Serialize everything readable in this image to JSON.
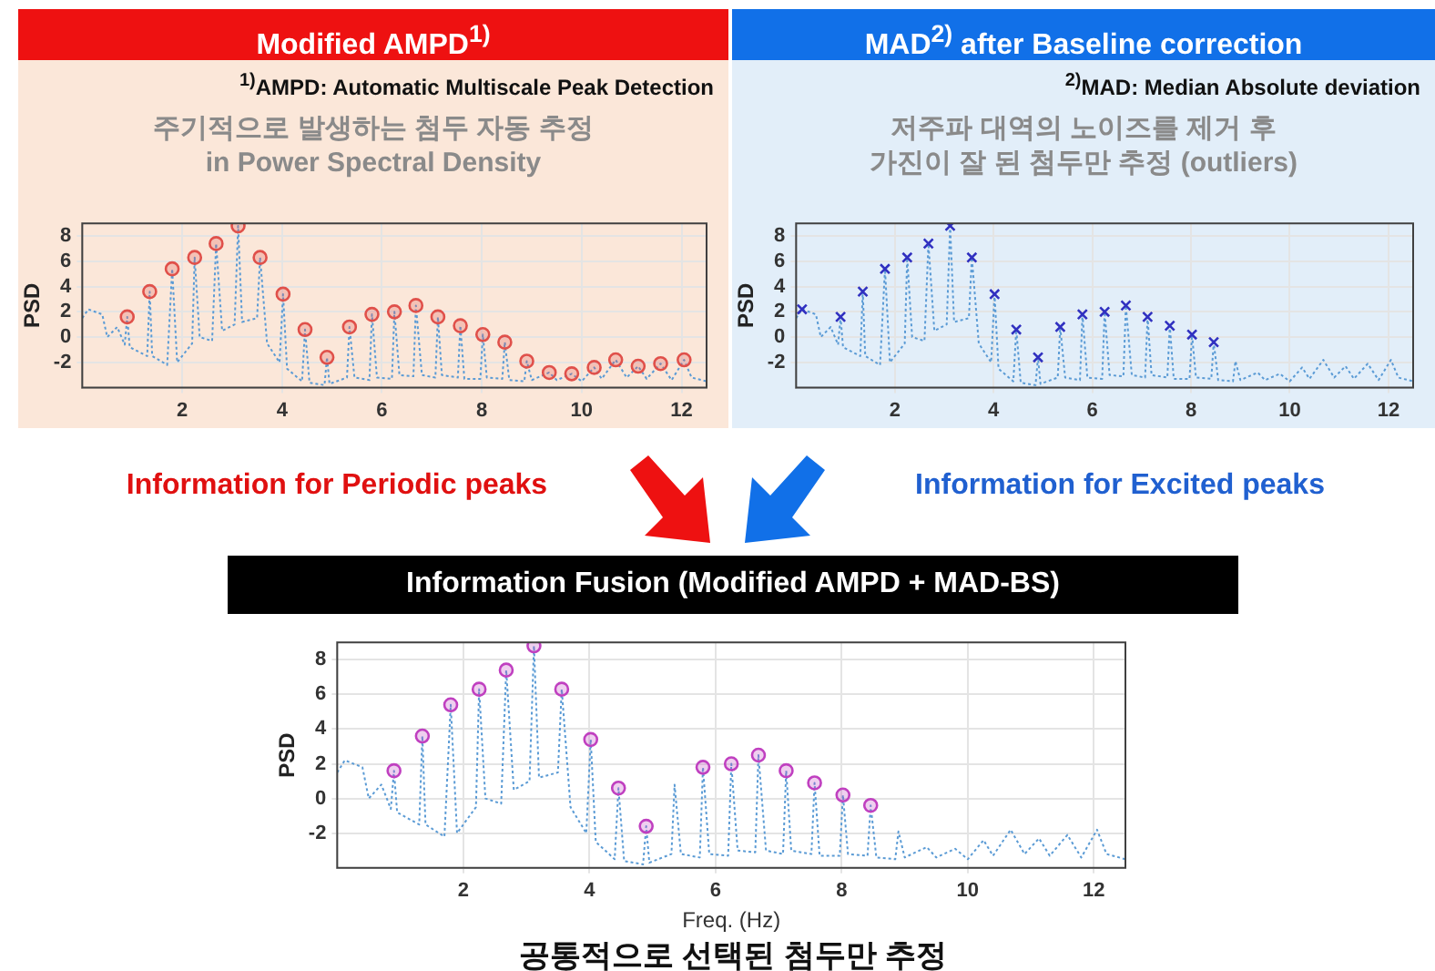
{
  "chart_data": [
    {
      "type": "line",
      "title": "Modified AMPD$^{1)}$",
      "annotations": [
        "$^{1)}$AMPD: Automatic Multiscale Peak Detection",
        "주기적으로 발생하는 첨두 자동 추정",
        "in Power Spectral Density"
      ],
      "ylabel": "PSD",
      "xlim": [
        0,
        12.5
      ],
      "xticks": [
        2,
        4,
        6,
        8,
        10,
        12
      ],
      "ylim": [
        -4,
        9
      ],
      "yticks": [
        -2,
        0,
        2,
        4,
        6,
        8
      ],
      "grid": true,
      "series": [
        {
          "type": "line",
          "color": "#5b9bd5",
          "line_style": "dotted",
          "marker": "none",
          "x": [
            0,
            0.12,
            0.4,
            0.5,
            0.7,
            0.85,
            0.9,
            0.95,
            1.3,
            1.35,
            1.4,
            1.7,
            1.8,
            1.9,
            2.2,
            2.25,
            2.35,
            2.6,
            2.68,
            2.8,
            3.05,
            3.12,
            3.2,
            3.5,
            3.56,
            3.7,
            3.95,
            4.02,
            4.1,
            4.4,
            4.46,
            4.55,
            4.85,
            4.9,
            4.95,
            5.3,
            5.35,
            5.45,
            5.75,
            5.8,
            5.9,
            6.2,
            6.25,
            6.35,
            6.63,
            6.68,
            6.8,
            7.07,
            7.12,
            7.2,
            7.52,
            7.57,
            7.65,
            7.97,
            8.02,
            8.1,
            8.41,
            8.46,
            8.55,
            8.85,
            8.9,
            9.0,
            9.35,
            9.5,
            9.8,
            10.0,
            10.25,
            10.4,
            10.68,
            10.9,
            11.13,
            11.3,
            11.58,
            11.8,
            12.05,
            12.2,
            12.5
          ],
          "values": [
            1.5,
            2.2,
            1.8,
            0,
            0.8,
            -0.6,
            1.6,
            -0.8,
            -1.5,
            3.6,
            -1.5,
            -2.2,
            5.4,
            -2,
            -0.5,
            6.3,
            0,
            -0.3,
            7.4,
            0.5,
            1,
            8.8,
            1.2,
            1.5,
            6.3,
            -0.5,
            -2,
            3.4,
            -2.5,
            -3.5,
            0.6,
            -3.6,
            -3.8,
            -1.6,
            -3.7,
            -3.2,
            0.8,
            -3.2,
            -3.4,
            1.8,
            -3.2,
            -3.3,
            2,
            -3,
            -3.1,
            2.5,
            -3,
            -3.2,
            1.6,
            -3,
            -3.2,
            0.9,
            -3.3,
            -3.3,
            0.2,
            -3.2,
            -3.3,
            -0.4,
            -3.4,
            -3.5,
            -1.9,
            -3.4,
            -2.8,
            -3.4,
            -2.9,
            -3.5,
            -2.4,
            -3.3,
            -1.8,
            -3.2,
            -2.3,
            -3.3,
            -2.1,
            -3.4,
            -1.8,
            -3.2,
            -3.5
          ]
        },
        {
          "type": "scatter",
          "color": "#e0504a",
          "marker": "circle",
          "x": [
            0.9,
            1.35,
            1.8,
            2.25,
            2.68,
            3.12,
            3.56,
            4.02,
            4.46,
            4.9,
            5.35,
            5.8,
            6.25,
            6.68,
            7.12,
            7.57,
            8.02,
            8.46,
            8.9,
            9.35,
            9.8,
            10.25,
            10.68,
            11.13,
            11.58,
            12.05
          ],
          "values": [
            1.6,
            3.6,
            5.4,
            6.3,
            7.4,
            8.8,
            6.3,
            3.4,
            0.6,
            -1.6,
            0.8,
            1.8,
            2,
            2.5,
            1.6,
            0.9,
            0.2,
            -0.4,
            -1.9,
            -2.8,
            -2.9,
            -2.4,
            -1.8,
            -2.3,
            -2.1,
            -1.8
          ]
        }
      ]
    },
    {
      "type": "line",
      "title": "MAD$^{2)}$ after Baseline correction",
      "annotations": [
        "$^{2)}$MAD: Median Absolute deviation",
        "저주파 대역의 노이즈를 제거 후",
        "가진이 잘 된 첨두만 추정 (outliers)"
      ],
      "ylabel": "PSD",
      "xlim": [
        0,
        12.5
      ],
      "xticks": [
        2,
        4,
        6,
        8,
        10,
        12
      ],
      "ylim": [
        -4,
        9
      ],
      "yticks": [
        -2,
        0,
        2,
        4,
        6,
        8
      ],
      "grid": true,
      "series": [
        {
          "type": "line",
          "color": "#5b9bd5",
          "line_style": "dotted",
          "marker": "none",
          "x": [
            0,
            0.12,
            0.4,
            0.5,
            0.7,
            0.85,
            0.9,
            0.95,
            1.3,
            1.35,
            1.4,
            1.7,
            1.8,
            1.9,
            2.2,
            2.25,
            2.35,
            2.6,
            2.68,
            2.8,
            3.05,
            3.12,
            3.2,
            3.5,
            3.56,
            3.7,
            3.95,
            4.02,
            4.1,
            4.4,
            4.46,
            4.55,
            4.85,
            4.9,
            4.95,
            5.3,
            5.35,
            5.45,
            5.75,
            5.8,
            5.9,
            6.2,
            6.25,
            6.35,
            6.63,
            6.68,
            6.8,
            7.07,
            7.12,
            7.2,
            7.52,
            7.57,
            7.65,
            7.97,
            8.02,
            8.1,
            8.41,
            8.46,
            8.55,
            8.85,
            8.9,
            9.0,
            9.35,
            9.5,
            9.8,
            10.0,
            10.25,
            10.4,
            10.68,
            10.9,
            11.13,
            11.3,
            11.58,
            11.8,
            12.05,
            12.2,
            12.5
          ],
          "values": [
            1.5,
            2.2,
            1.8,
            0,
            0.8,
            -0.6,
            1.6,
            -0.8,
            -1.5,
            3.6,
            -1.5,
            -2.2,
            5.4,
            -2,
            -0.5,
            6.3,
            0,
            -0.3,
            7.4,
            0.5,
            1,
            8.8,
            1.2,
            1.5,
            6.3,
            -0.5,
            -2,
            3.4,
            -2.5,
            -3.5,
            0.6,
            -3.6,
            -3.8,
            -1.6,
            -3.7,
            -3.2,
            0.8,
            -3.2,
            -3.4,
            1.8,
            -3.2,
            -3.3,
            2,
            -3,
            -3.1,
            2.5,
            -3,
            -3.2,
            1.6,
            -3,
            -3.2,
            0.9,
            -3.3,
            -3.3,
            0.2,
            -3.2,
            -3.3,
            -0.4,
            -3.4,
            -3.5,
            -1.9,
            -3.4,
            -2.8,
            -3.4,
            -2.9,
            -3.5,
            -2.4,
            -3.3,
            -1.8,
            -3.2,
            -2.3,
            -3.3,
            -2.1,
            -3.4,
            -1.8,
            -3.2,
            -3.5
          ]
        },
        {
          "type": "scatter",
          "color": "#3030c0",
          "marker": "cross",
          "x": [
            0.12,
            0.9,
            1.35,
            1.8,
            2.25,
            2.68,
            3.12,
            3.56,
            4.02,
            4.46,
            4.9,
            5.35,
            5.8,
            6.25,
            6.68,
            7.12,
            7.57,
            8.02,
            8.46
          ],
          "values": [
            2.2,
            1.6,
            3.6,
            5.4,
            6.3,
            7.4,
            8.8,
            6.3,
            3.4,
            0.6,
            -1.6,
            0.8,
            1.8,
            2,
            2.5,
            1.6,
            0.9,
            0.2,
            -0.4
          ]
        }
      ]
    },
    {
      "type": "line",
      "title": "Information Fusion (Modified AMPD + MAD-BS)",
      "annotations": [
        "Information for Periodic peaks",
        "Information for Excited peaks",
        "공통적으로 선택된 첨두만 추정"
      ],
      "xlabel": "Freq. (Hz)",
      "ylabel": "PSD",
      "xlim": [
        0,
        12.5
      ],
      "xticks": [
        2,
        4,
        6,
        8,
        10,
        12
      ],
      "ylim": [
        -4,
        9
      ],
      "yticks": [
        -2,
        0,
        2,
        4,
        6,
        8
      ],
      "grid": true,
      "series": [
        {
          "type": "line",
          "color": "#5b9bd5",
          "line_style": "dotted",
          "marker": "none",
          "x": [
            0,
            0.12,
            0.4,
            0.5,
            0.7,
            0.85,
            0.9,
            0.95,
            1.3,
            1.35,
            1.4,
            1.7,
            1.8,
            1.9,
            2.2,
            2.25,
            2.35,
            2.6,
            2.68,
            2.8,
            3.05,
            3.12,
            3.2,
            3.5,
            3.56,
            3.7,
            3.95,
            4.02,
            4.1,
            4.4,
            4.46,
            4.55,
            4.85,
            4.9,
            4.95,
            5.3,
            5.35,
            5.45,
            5.75,
            5.8,
            5.9,
            6.2,
            6.25,
            6.35,
            6.63,
            6.68,
            6.8,
            7.07,
            7.12,
            7.2,
            7.52,
            7.57,
            7.65,
            7.97,
            8.02,
            8.1,
            8.41,
            8.46,
            8.55,
            8.85,
            8.9,
            9.0,
            9.35,
            9.5,
            9.8,
            10.0,
            10.25,
            10.4,
            10.68,
            10.9,
            11.13,
            11.3,
            11.58,
            11.8,
            12.05,
            12.2,
            12.5
          ],
          "values": [
            1.5,
            2.2,
            1.8,
            0,
            0.8,
            -0.6,
            1.6,
            -0.8,
            -1.5,
            3.6,
            -1.5,
            -2.2,
            5.4,
            -2,
            -0.5,
            6.3,
            0,
            -0.3,
            7.4,
            0.5,
            1,
            8.8,
            1.2,
            1.5,
            6.3,
            -0.5,
            -2,
            3.4,
            -2.5,
            -3.5,
            0.6,
            -3.6,
            -3.8,
            -1.6,
            -3.7,
            -3.2,
            0.8,
            -3.2,
            -3.4,
            1.8,
            -3.2,
            -3.3,
            2,
            -3,
            -3.1,
            2.5,
            -3,
            -3.2,
            1.6,
            -3,
            -3.2,
            0.9,
            -3.3,
            -3.3,
            0.2,
            -3.2,
            -3.3,
            -0.4,
            -3.4,
            -3.5,
            -1.9,
            -3.4,
            -2.8,
            -3.4,
            -2.9,
            -3.5,
            -2.4,
            -3.3,
            -1.8,
            -3.2,
            -2.3,
            -3.3,
            -2.1,
            -3.4,
            -1.8,
            -3.2,
            -3.5
          ]
        },
        {
          "type": "scatter",
          "color": "#c040c0",
          "marker": "circle",
          "x": [
            0.9,
            1.35,
            1.8,
            2.25,
            2.68,
            3.12,
            3.56,
            4.02,
            4.46,
            4.9,
            5.8,
            6.25,
            6.68,
            7.12,
            7.57,
            8.02,
            8.46
          ],
          "values": [
            1.6,
            3.6,
            5.4,
            6.3,
            7.4,
            8.8,
            6.3,
            3.4,
            0.6,
            -1.6,
            1.8,
            2,
            2.5,
            1.6,
            0.9,
            0.2,
            -0.4
          ]
        }
      ]
    }
  ]
}
